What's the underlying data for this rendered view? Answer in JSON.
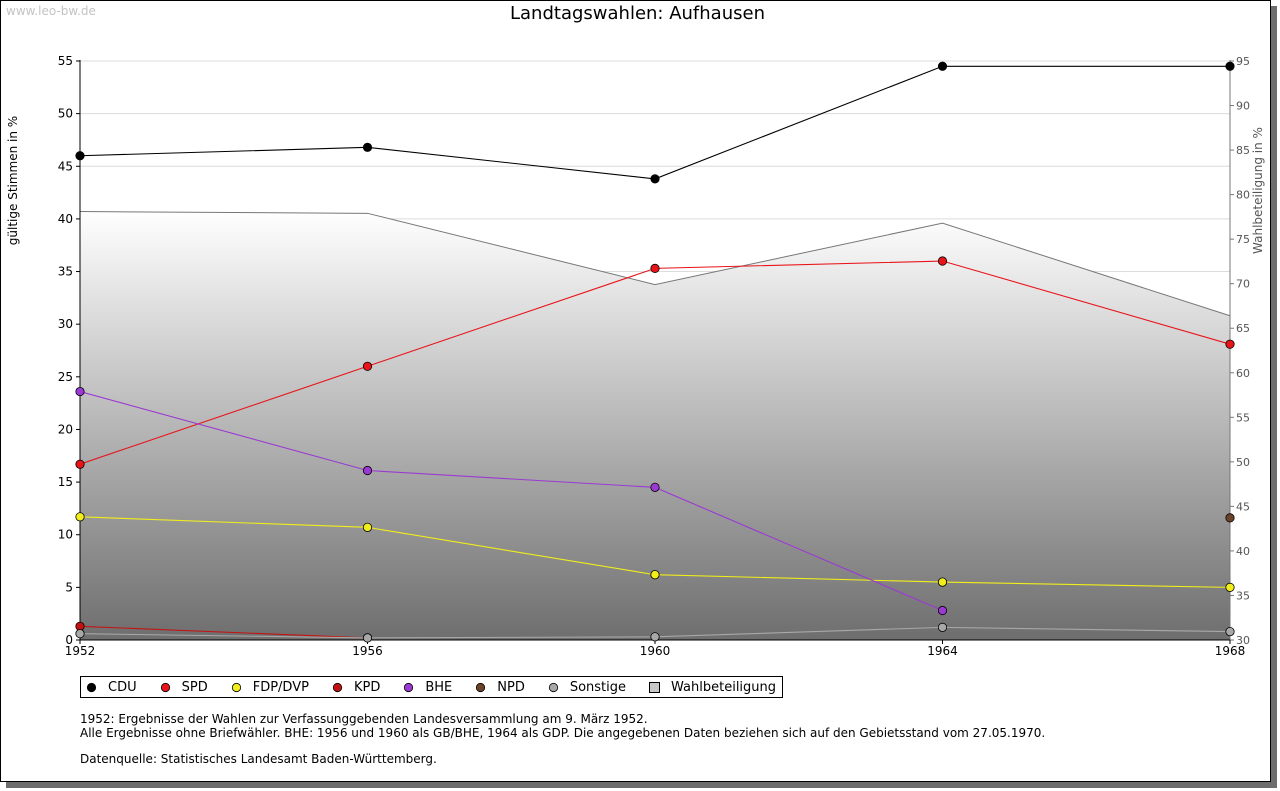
{
  "watermark": "www.leo-bw.de",
  "title": "Landtagswahlen: Aufhausen",
  "colors": {
    "CDU": "#000000",
    "SPD": "#e8141a",
    "FDP/DVP": "#f1ee1b",
    "KPD": "#c41212",
    "BHE": "#9a3ad2",
    "NPD": "#6b4328",
    "Sonstige": "#a8a8a8",
    "Wahlbeteiligung": "#c8c8c8",
    "turnout_line": "#777777",
    "grid": "#dcdcdc"
  },
  "chart_data": {
    "type": "line",
    "title": "Landtagswahlen: Aufhausen",
    "xlabel": "",
    "ylabel": "gültige Stimmen in %",
    "y2label": "Wahlbeteiligung in %",
    "x": [
      1952,
      1956,
      1960,
      1964,
      1968
    ],
    "ylim": [
      0,
      55
    ],
    "yticks": [
      0,
      5,
      10,
      15,
      20,
      25,
      30,
      35,
      40,
      45,
      50,
      55
    ],
    "y2lim": [
      30,
      95
    ],
    "y2ticks": [
      30,
      35,
      40,
      45,
      50,
      55,
      60,
      65,
      70,
      75,
      80,
      85,
      90,
      95
    ],
    "grid": true,
    "legend_position": "bottom",
    "area": {
      "name": "Wahlbeteiligung",
      "axis": "right",
      "values": [
        78.1,
        77.9,
        69.9,
        76.8,
        66.4
      ]
    },
    "series": [
      {
        "name": "CDU",
        "values": [
          46.0,
          46.8,
          43.8,
          54.5,
          54.5
        ]
      },
      {
        "name": "SPD",
        "values": [
          16.7,
          26.0,
          35.3,
          36.0,
          28.1
        ]
      },
      {
        "name": "FDP/DVP",
        "values": [
          11.7,
          10.7,
          6.2,
          5.5,
          5.0
        ]
      },
      {
        "name": "KPD",
        "values": [
          1.3,
          0.2,
          null,
          null,
          null
        ]
      },
      {
        "name": "BHE",
        "values": [
          23.6,
          16.1,
          14.5,
          2.8,
          null
        ]
      },
      {
        "name": "NPD",
        "values": [
          null,
          null,
          null,
          null,
          11.6
        ]
      },
      {
        "name": "Sonstige",
        "values": [
          0.6,
          0.2,
          0.3,
          1.2,
          0.8
        ]
      }
    ]
  },
  "legend": [
    "CDU",
    "SPD",
    "FDP/DVP",
    "KPD",
    "BHE",
    "NPD",
    "Sonstige",
    "Wahlbeteiligung"
  ],
  "footnotes": {
    "line1": "1952: Ergebnisse der Wahlen zur Verfassunggebenden Landesversammlung am 9. März 1952.",
    "line2": "Alle Ergebnisse ohne Briefwähler. BHE: 1956 und 1960 als GB/BHE, 1964 als GDP. Die angegebenen Daten beziehen sich auf den Gebietsstand vom 27.05.1970.",
    "source": "Datenquelle: Statistisches Landesamt Baden-Württemberg."
  }
}
